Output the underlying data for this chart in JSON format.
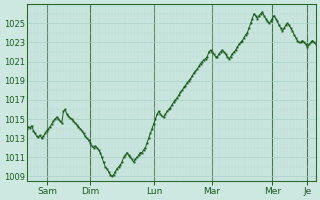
{
  "ylabel_values": [
    1009,
    1011,
    1013,
    1015,
    1017,
    1019,
    1021,
    1023,
    1025
  ],
  "xlabels": [
    "Sam",
    "Dim",
    "Lun",
    "Mar",
    "Mer",
    "Je"
  ],
  "xlabels_positions": [
    0.07,
    0.22,
    0.44,
    0.64,
    0.85,
    0.97
  ],
  "day_lines": [
    0.07,
    0.22,
    0.44,
    0.64,
    0.85,
    0.97
  ],
  "bg_color": "#cce8e0",
  "grid_color_major": "#aad0c8",
  "grid_color_minor": "#bcddd6",
  "line_color": "#1a5c1a",
  "marker_color": "#1a5c1a",
  "ylim": [
    1008.5,
    1027.0
  ],
  "xlim": [
    0.0,
    1.0
  ],
  "series_y": [
    1014.0,
    1014.2,
    1014.1,
    1014.3,
    1013.8,
    1013.5,
    1013.2,
    1013.1,
    1013.3,
    1013.0,
    1013.2,
    1013.5,
    1013.8,
    1014.0,
    1014.2,
    1014.5,
    1014.8,
    1015.0,
    1015.2,
    1015.0,
    1014.8,
    1014.6,
    1015.8,
    1016.0,
    1015.5,
    1015.3,
    1015.1,
    1015.0,
    1014.8,
    1014.6,
    1014.4,
    1014.2,
    1014.0,
    1013.8,
    1013.5,
    1013.2,
    1013.0,
    1012.8,
    1012.5,
    1012.2,
    1012.0,
    1012.2,
    1012.0,
    1011.8,
    1011.5,
    1011.0,
    1010.5,
    1010.0,
    1009.8,
    1009.5,
    1009.2,
    1009.0,
    1009.2,
    1009.5,
    1009.8,
    1010.0,
    1010.2,
    1010.5,
    1011.0,
    1011.2,
    1011.5,
    1011.2,
    1011.0,
    1010.8,
    1010.5,
    1010.8,
    1011.0,
    1011.2,
    1011.5,
    1011.5,
    1011.8,
    1012.0,
    1012.5,
    1013.0,
    1013.5,
    1014.0,
    1014.5,
    1015.0,
    1015.5,
    1015.8,
    1015.5,
    1015.3,
    1015.2,
    1015.5,
    1015.8,
    1016.0,
    1016.2,
    1016.5,
    1016.8,
    1017.0,
    1017.2,
    1017.5,
    1017.8,
    1018.0,
    1018.3,
    1018.5,
    1018.8,
    1019.0,
    1019.2,
    1019.5,
    1019.8,
    1020.0,
    1020.2,
    1020.5,
    1020.8,
    1021.0,
    1021.2,
    1021.3,
    1021.5,
    1022.0,
    1022.2,
    1022.0,
    1021.8,
    1021.5,
    1021.5,
    1021.8,
    1022.0,
    1022.2,
    1022.0,
    1021.8,
    1021.5,
    1021.3,
    1021.5,
    1021.8,
    1022.0,
    1022.2,
    1022.5,
    1022.8,
    1023.0,
    1023.2,
    1023.5,
    1023.8,
    1024.0,
    1024.5,
    1025.0,
    1025.5,
    1026.0,
    1025.8,
    1025.5,
    1025.8,
    1026.0,
    1026.2,
    1025.8,
    1025.5,
    1025.2,
    1025.0,
    1025.2,
    1025.5,
    1025.8,
    1025.5,
    1025.2,
    1024.8,
    1024.5,
    1024.2,
    1024.5,
    1024.8,
    1025.0,
    1024.8,
    1024.5,
    1024.2,
    1023.8,
    1023.5,
    1023.2,
    1023.0,
    1023.0,
    1023.2,
    1023.0,
    1022.8,
    1022.5,
    1022.8,
    1023.0,
    1023.2,
    1023.0,
    1022.8
  ]
}
